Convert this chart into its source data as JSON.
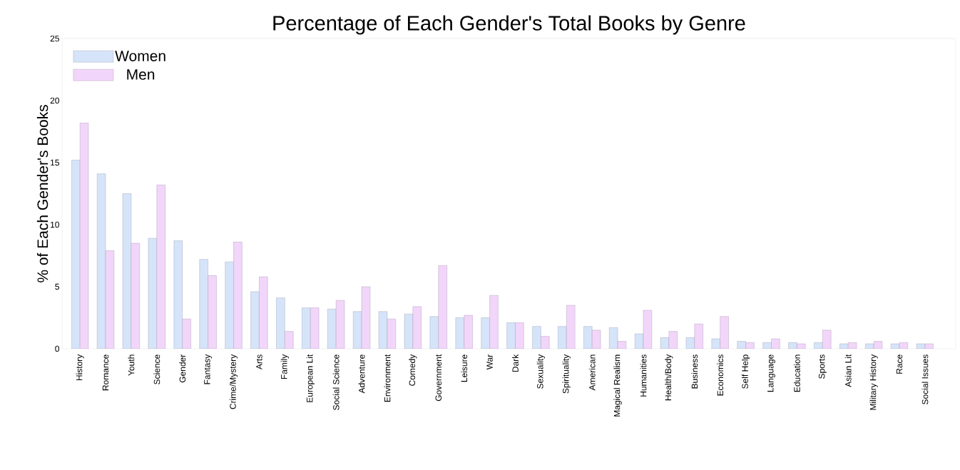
{
  "chart_data": {
    "type": "bar",
    "title": "Percentage of Each Gender's Total Books by Genre",
    "ylabel": "% of Each Gender's Books",
    "categories": [
      "History",
      "Romance",
      "Youth",
      "Science",
      "Gender",
      "Fantasy",
      "Crime/Mystery",
      "Arts",
      "Family",
      "European Lit",
      "Social Science",
      "Adventure",
      "Environment",
      "Comedy",
      "Government",
      "Leisure",
      "War",
      "Dark",
      "Sexuality",
      "Spirituality",
      "American",
      "Magical Realism",
      "Humanities",
      "Health/Body",
      "Business",
      "Economics",
      "Self Help",
      "Language",
      "Education",
      "Sports",
      "Asian Lit",
      "Military History",
      "Race",
      "Social Issues"
    ],
    "series": [
      {
        "name": "Women",
        "color": "#d6e4fa",
        "values": [
          15.2,
          14.1,
          12.5,
          8.9,
          8.7,
          7.2,
          7.0,
          4.6,
          4.1,
          3.3,
          3.2,
          3.0,
          3.0,
          2.8,
          2.6,
          2.5,
          2.5,
          2.1,
          1.8,
          1.8,
          1.8,
          1.7,
          1.2,
          0.9,
          0.9,
          0.8,
          0.6,
          0.5,
          0.5,
          0.5,
          0.4,
          0.4,
          0.4,
          0.4
        ]
      },
      {
        "name": "Men",
        "color": "#f1d6fa",
        "values": [
          18.2,
          7.9,
          8.5,
          13.2,
          2.4,
          5.9,
          8.6,
          5.8,
          1.4,
          3.3,
          3.9,
          5.0,
          2.4,
          3.4,
          6.7,
          2.7,
          4.3,
          2.1,
          1.0,
          3.5,
          1.5,
          0.6,
          3.1,
          1.4,
          2.0,
          2.6,
          0.5,
          0.8,
          0.4,
          1.5,
          0.5,
          0.6,
          0.5,
          0.4
        ]
      }
    ],
    "ylim": [
      0,
      25
    ],
    "yticks": [
      0,
      5,
      10,
      15,
      20,
      25
    ],
    "legend": "top left"
  }
}
